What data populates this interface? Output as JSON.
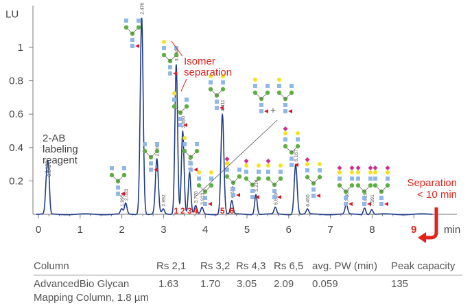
{
  "chart_data": {
    "type": "line",
    "x_ticks": [
      0,
      1,
      2,
      3,
      4,
      5,
      6,
      7,
      8,
      9
    ],
    "y_ticks": [
      0.2,
      0.4,
      0.6,
      0.8,
      1
    ],
    "y_unit": "LU",
    "x_unit": "min",
    "xlim": [
      -0.05,
      9.6
    ],
    "ylim": [
      -0.05,
      1.32
    ],
    "peaks": [
      {
        "t": 0.2,
        "h": 0.23,
        "w": 0.03,
        "label": "0.196"
      },
      {
        "t": 0.245,
        "h": 0.21,
        "w": 0.025,
        "label": "0.243"
      },
      {
        "t": 1.995,
        "h": 0.03,
        "w": 0.03,
        "label": "1.995"
      },
      {
        "t": 2.093,
        "h": 0.065,
        "w": 0.03,
        "label": "2.093"
      },
      {
        "t": 2.476,
        "h": 1.18,
        "w": 0.035,
        "label": "2.476"
      },
      {
        "t": 2.84,
        "h": 0.33,
        "w": 0.035,
        "label": "2.840"
      },
      {
        "t": 2.992,
        "h": 0.03,
        "w": 0.03,
        "label": "2.992"
      },
      {
        "t": 3.304,
        "h": 0.9,
        "w": 0.032,
        "label": "3.304"
      },
      {
        "t": 3.46,
        "h": 0.5,
        "w": 0.032,
        "label": "3.460"
      },
      {
        "t": 3.624,
        "h": 0.25,
        "w": 0.03,
        "label": "3.624"
      },
      {
        "t": 3.77,
        "h": 0.05,
        "w": 0.03,
        "label": "3.770"
      },
      {
        "t": 3.923,
        "h": 0.04,
        "w": 0.03,
        "label": "3.923"
      },
      {
        "t": 4.411,
        "h": 0.6,
        "w": 0.035,
        "label": "4.411"
      },
      {
        "t": 4.636,
        "h": 0.08,
        "w": 0.03,
        "label": "4.636"
      },
      {
        "t": 5.214,
        "h": 0.12,
        "w": 0.03,
        "label": "5.214"
      },
      {
        "t": 5.68,
        "h": 0.04,
        "w": 0.03,
        "label": "5.680"
      },
      {
        "t": 6.167,
        "h": 0.3,
        "w": 0.035,
        "label": "6.167"
      },
      {
        "t": 6.45,
        "h": 0.03,
        "w": 0.03,
        "label": "6.450"
      },
      {
        "t": 7.382,
        "h": 0.06,
        "w": 0.03,
        "label": "7.382"
      },
      {
        "t": 7.819,
        "h": 0.04,
        "w": 0.03,
        "label": "7.819"
      },
      {
        "t": 7.991,
        "h": 0.03,
        "w": 0.03,
        "label": "7.991"
      }
    ],
    "peak_numbers": [
      {
        "n": "1",
        "t": 3.304
      },
      {
        "n": "2",
        "t": 3.46
      },
      {
        "n": "3",
        "t": 3.624
      },
      {
        "n": "4",
        "t": 3.77
      },
      {
        "n": "5",
        "t": 4.411
      },
      {
        "n": "6",
        "t": 4.636
      }
    ],
    "annotations": {
      "reagent": [
        "2-AB",
        "labeling",
        "reagent"
      ],
      "isomer": [
        "Isomer",
        "separation"
      ],
      "separation": [
        "Separation",
        "< 10 min"
      ],
      "nine": "9",
      "plus": "+"
    }
  },
  "colors": {
    "trace": "#1f3c88",
    "red": "#e0241b",
    "axis": "#777777",
    "text": "#444444",
    "glycan_blue": "#8fb8e8",
    "glycan_green": "#5fae42",
    "glycan_yellow": "#f5e21b",
    "glycan_magenta": "#cc2d8c",
    "fucose_red": "#d21b26"
  },
  "table": {
    "headers": [
      "Column",
      "Rs 2,1",
      "Rs 3,2",
      "Rs 4,3",
      "Rs 6,5",
      "avg. PW (min)",
      "Peak capacity"
    ],
    "row_name": [
      "AdvancedBio Glycan",
      "Mapping Column, 1.8 µm"
    ],
    "row_values": [
      "1.63",
      "1.70",
      "3.05",
      "2.09",
      "0.059",
      "135"
    ]
  }
}
